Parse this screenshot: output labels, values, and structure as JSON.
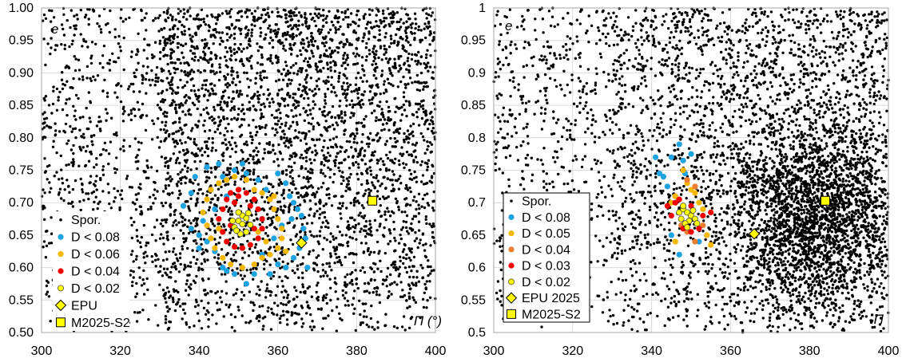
{
  "chart_data": [
    {
      "type": "scatter",
      "xlabel": "Π (°)",
      "ylabel": "e",
      "xlim": [
        300,
        400
      ],
      "ylim": [
        0.5,
        1.0
      ],
      "x_ticks": [
        300,
        320,
        340,
        360,
        380,
        400
      ],
      "x_tick_labels": [
        "300",
        "320",
        "340",
        "360",
        "380",
        "400"
      ],
      "y_ticks": [
        0.5,
        0.55,
        0.6,
        0.65,
        0.7,
        0.75,
        0.8,
        0.85,
        0.9,
        0.95,
        1.0
      ],
      "y_tick_labels": [
        "0.50",
        "0.55",
        "0.60",
        "0.65",
        "0.70",
        "0.75",
        "0.80",
        "0.85",
        "0.90",
        "0.95",
        "1.00"
      ],
      "grid": "major, both axes",
      "legend_position": "bottom-left",
      "background": {
        "name": "Spor.",
        "color": "#000000",
        "count_approx": 5000,
        "distribution": "scattered over the whole plotting area"
      },
      "series": [
        {
          "name": "D < 0.08",
          "marker": "circle",
          "color": "#1ea2e0",
          "points": [
            [
              336,
              0.695
            ],
            [
              338,
              0.715
            ],
            [
              339,
              0.74
            ],
            [
              340,
              0.65
            ],
            [
              341,
              0.672
            ],
            [
              342,
              0.755
            ],
            [
              343,
              0.72
            ],
            [
              344,
              0.69
            ],
            [
              345,
              0.76
            ],
            [
              346,
              0.74
            ],
            [
              347,
              0.71
            ],
            [
              349,
              0.75
            ],
            [
              351,
              0.76
            ],
            [
              352,
              0.745
            ],
            [
              355,
              0.735
            ],
            [
              357,
              0.72
            ],
            [
              360,
              0.745
            ],
            [
              362,
              0.73
            ],
            [
              363,
              0.71
            ],
            [
              364,
              0.7
            ],
            [
              365,
              0.69
            ],
            [
              366,
              0.68
            ],
            [
              366.5,
              0.66
            ],
            [
              367,
              0.645
            ],
            [
              365.5,
              0.63
            ],
            [
              364,
              0.615
            ],
            [
              362,
              0.6
            ],
            [
              360,
              0.605
            ],
            [
              358,
              0.59
            ],
            [
              356,
              0.62
            ],
            [
              354,
              0.59
            ],
            [
              352,
              0.575
            ],
            [
              349,
              0.59
            ],
            [
              346,
              0.6
            ],
            [
              344,
              0.625
            ],
            [
              342,
              0.64
            ],
            [
              340,
              0.63
            ],
            [
              338,
              0.66
            ],
            [
              361,
              0.665
            ],
            [
              363.5,
              0.675
            ],
            [
              359,
              0.645
            ],
            [
              347,
              0.595
            ],
            [
              367.5,
              0.6
            ]
          ]
        },
        {
          "name": "D < 0.06",
          "marker": "circle",
          "color": "#f5b800",
          "points": [
            [
              341,
              0.685
            ],
            [
              342,
              0.705
            ],
            [
              343,
              0.72
            ],
            [
              345,
              0.73
            ],
            [
              347,
              0.735
            ],
            [
              349,
              0.74
            ],
            [
              352,
              0.735
            ],
            [
              354,
              0.72
            ],
            [
              356,
              0.715
            ],
            [
              358,
              0.705
            ],
            [
              359,
              0.69
            ],
            [
              360,
              0.675
            ],
            [
              361,
              0.66
            ],
            [
              361,
              0.645
            ],
            [
              360,
              0.63
            ],
            [
              358,
              0.62
            ],
            [
              356,
              0.615
            ],
            [
              354,
              0.605
            ],
            [
              351,
              0.6
            ],
            [
              348,
              0.605
            ],
            [
              346,
              0.615
            ],
            [
              344,
              0.63
            ],
            [
              343,
              0.645
            ],
            [
              342,
              0.665
            ],
            [
              355,
              0.655
            ],
            [
              357,
              0.64
            ],
            [
              359,
              0.71
            ],
            [
              345,
              0.66
            ],
            [
              350,
              0.72
            ],
            [
              362,
              0.625
            ]
          ]
        },
        {
          "name": "D < 0.04",
          "marker": "circle",
          "color": "#f00000",
          "points": [
            [
              345,
              0.675
            ],
            [
              346,
              0.69
            ],
            [
              347,
              0.705
            ],
            [
              348,
              0.715
            ],
            [
              350,
              0.72
            ],
            [
              352,
              0.715
            ],
            [
              354,
              0.705
            ],
            [
              355,
              0.69
            ],
            [
              356,
              0.675
            ],
            [
              356,
              0.66
            ],
            [
              355,
              0.645
            ],
            [
              353,
              0.635
            ],
            [
              351,
              0.63
            ],
            [
              349,
              0.632
            ],
            [
              347,
              0.64
            ],
            [
              346,
              0.655
            ],
            [
              349,
              0.7
            ],
            [
              353,
              0.695
            ],
            [
              350,
              0.71
            ],
            [
              348,
              0.665
            ],
            [
              354,
              0.66
            ]
          ]
        },
        {
          "name": "D < 0.02",
          "marker": "circle",
          "color": "#ffff00",
          "points": [
            [
              349,
              0.662
            ],
            [
              350,
              0.672
            ],
            [
              351,
              0.68
            ],
            [
              352,
              0.676
            ],
            [
              353,
              0.666
            ],
            [
              352,
              0.655
            ],
            [
              350.5,
              0.652
            ],
            [
              349.5,
              0.657
            ],
            [
              351,
              0.667
            ],
            [
              352.5,
              0.684
            ],
            [
              350,
              0.685
            ],
            [
              348.5,
              0.672
            ]
          ]
        },
        {
          "name": "EPU",
          "marker": "diamond",
          "color": "#ffff00",
          "points": [
            [
              366,
              0.638
            ]
          ]
        },
        {
          "name": "M2025-S2",
          "marker": "square",
          "color": "#ffff00",
          "points": [
            [
              384,
              0.703
            ]
          ]
        }
      ]
    },
    {
      "type": "scatter",
      "xlabel": "Π",
      "ylabel": "e",
      "xlim": [
        300,
        400
      ],
      "ylim": [
        0.5,
        1.0
      ],
      "x_ticks": [
        300,
        320,
        340,
        360,
        380,
        400
      ],
      "x_tick_labels": [
        "300",
        "320",
        "340",
        "360",
        "380",
        "400"
      ],
      "y_ticks": [
        0.5,
        0.55,
        0.6,
        0.65,
        0.7,
        0.75,
        0.8,
        0.85,
        0.9,
        0.95,
        1.0
      ],
      "y_tick_labels": [
        "0.5",
        "0.55",
        "0.6",
        "0.65",
        "0.7",
        "0.75",
        "0.8",
        "0.85",
        "0.9",
        "0.95",
        "1"
      ],
      "grid": "major, both axes",
      "legend_position": "bottom-left",
      "background": {
        "name": "Spor.",
        "color": "#000000",
        "count_approx": 6000,
        "distribution": "scattered over the whole area, dense concentration near Π 370-395, e 0.6-0.75"
      },
      "series": [
        {
          "name": "D < 0.08",
          "marker": "circle",
          "color": "#1ea2e0",
          "points": [
            [
              341,
              0.77
            ],
            [
              342,
              0.745
            ],
            [
              343,
              0.74
            ],
            [
              344,
              0.725
            ],
            [
              345,
              0.77
            ],
            [
              347,
              0.79
            ],
            [
              348,
              0.765
            ],
            [
              348.5,
              0.745
            ],
            [
              350,
              0.775
            ],
            [
              346,
              0.71
            ],
            [
              345,
              0.65
            ],
            [
              347,
              0.62
            ],
            [
              352,
              0.64
            ]
          ]
        },
        {
          "name": "D < 0.05",
          "marker": "circle",
          "color": "#f5b800",
          "points": [
            [
              345,
              0.7
            ],
            [
              346,
              0.71
            ],
            [
              348,
              0.75
            ],
            [
              349,
              0.73
            ],
            [
              350,
              0.72
            ],
            [
              351,
              0.715
            ],
            [
              352,
              0.7
            ],
            [
              353,
              0.69
            ],
            [
              354,
              0.65
            ],
            [
              355,
              0.635
            ],
            [
              346,
              0.64
            ]
          ]
        },
        {
          "name": "D < 0.04",
          "marker": "circle",
          "color": "#ed7d31",
          "points": [
            [
              349,
              0.735
            ],
            [
              351,
              0.725
            ],
            [
              353,
              0.665
            ],
            [
              351,
              0.64
            ],
            [
              349,
              0.655
            ],
            [
              347.5,
              0.665
            ]
          ]
        },
        {
          "name": "D < 0.03",
          "marker": "circle",
          "color": "#f00000",
          "points": [
            [
              344,
              0.695
            ],
            [
              345,
              0.68
            ],
            [
              346,
              0.7
            ],
            [
              347,
              0.705
            ],
            [
              350,
              0.695
            ],
            [
              353,
              0.68
            ],
            [
              355,
              0.685
            ],
            [
              352,
              0.66
            ],
            [
              350,
              0.655
            ],
            [
              348,
              0.66
            ]
          ]
        },
        {
          "name": "D < 0.02",
          "marker": "circle",
          "color": "#ffff00",
          "points": [
            [
              347,
              0.685
            ],
            [
              348,
              0.69
            ],
            [
              349,
              0.685
            ],
            [
              350,
              0.68
            ],
            [
              351,
              0.675
            ],
            [
              349.5,
              0.672
            ],
            [
              348.5,
              0.668
            ],
            [
              347.5,
              0.675
            ],
            [
              350.5,
              0.688
            ],
            [
              348,
              0.695
            ],
            [
              349,
              0.662
            ],
            [
              351.5,
              0.668
            ]
          ]
        },
        {
          "name": "EPU 2025",
          "marker": "diamond",
          "color": "#ffff00",
          "points": [
            [
              366,
              0.652
            ]
          ]
        },
        {
          "name": "M2025-S2",
          "marker": "square",
          "color": "#ffff00",
          "points": [
            [
              384,
              0.703
            ]
          ]
        }
      ]
    }
  ]
}
